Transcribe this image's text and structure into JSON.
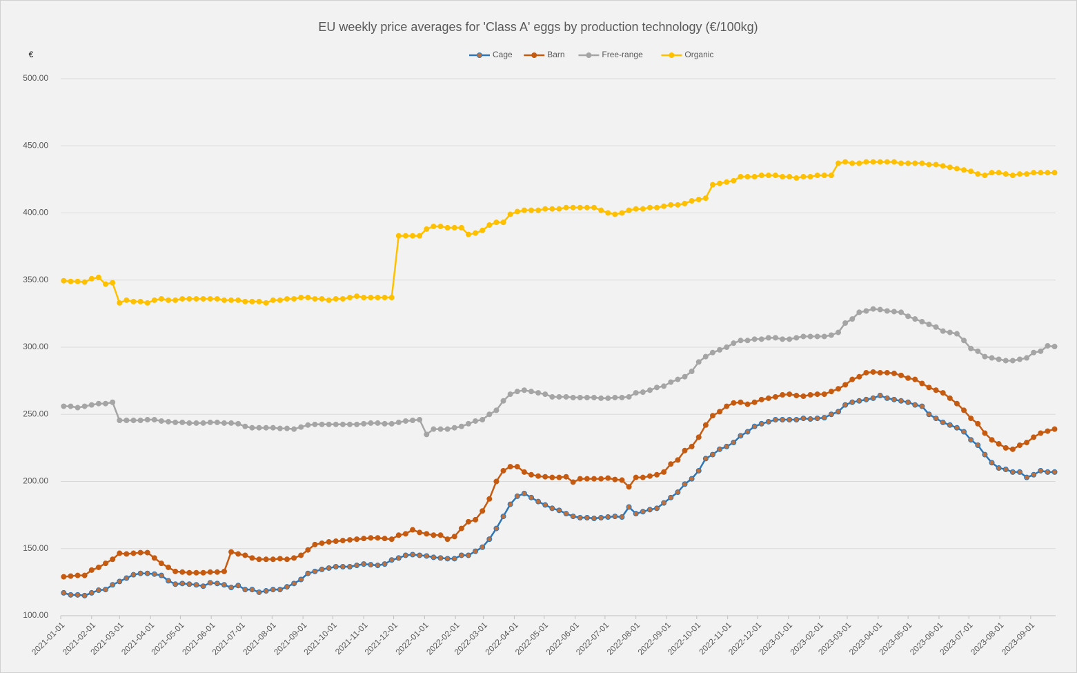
{
  "chart_data": {
    "type": "line",
    "title": "EU weekly price averages for 'Class A' eggs by production technology (€/100kg)",
    "y_label": "€",
    "x": [
      "2021-01-04",
      "2021-01-11",
      "2021-01-18",
      "2021-01-25",
      "2021-02-01",
      "2021-02-08",
      "2021-02-15",
      "2021-02-22",
      "2021-03-01",
      "2021-03-08",
      "2021-03-15",
      "2021-03-22",
      "2021-03-29",
      "2021-04-05",
      "2021-04-12",
      "2021-04-19",
      "2021-04-26",
      "2021-05-03",
      "2021-05-10",
      "2021-05-17",
      "2021-05-24",
      "2021-05-31",
      "2021-06-07",
      "2021-06-14",
      "2021-06-21",
      "2021-06-28",
      "2021-07-05",
      "2021-07-12",
      "2021-07-19",
      "2021-07-26",
      "2021-08-02",
      "2021-08-09",
      "2021-08-16",
      "2021-08-23",
      "2021-08-30",
      "2021-09-06",
      "2021-09-13",
      "2021-09-20",
      "2021-09-27",
      "2021-10-04",
      "2021-10-11",
      "2021-10-18",
      "2021-10-25",
      "2021-11-01",
      "2021-11-08",
      "2021-11-15",
      "2021-11-22",
      "2021-11-29",
      "2021-12-06",
      "2021-12-13",
      "2021-12-20",
      "2021-12-27",
      "2022-01-03",
      "2022-01-10",
      "2022-01-17",
      "2022-01-24",
      "2022-01-31",
      "2022-02-07",
      "2022-02-14",
      "2022-02-21",
      "2022-02-28",
      "2022-03-07",
      "2022-03-14",
      "2022-03-21",
      "2022-03-28",
      "2022-04-04",
      "2022-04-11",
      "2022-04-18",
      "2022-04-25",
      "2022-05-02",
      "2022-05-09",
      "2022-05-16",
      "2022-05-23",
      "2022-05-30",
      "2022-06-06",
      "2022-06-13",
      "2022-06-20",
      "2022-06-27",
      "2022-07-04",
      "2022-07-11",
      "2022-07-18",
      "2022-07-25",
      "2022-08-01",
      "2022-08-08",
      "2022-08-15",
      "2022-08-22",
      "2022-08-29",
      "2022-09-05",
      "2022-09-12",
      "2022-09-19",
      "2022-09-26",
      "2022-10-03",
      "2022-10-10",
      "2022-10-17",
      "2022-10-24",
      "2022-10-31",
      "2022-11-07",
      "2022-11-14",
      "2022-11-21",
      "2022-11-28",
      "2022-12-05",
      "2022-12-12",
      "2022-12-19",
      "2022-12-26",
      "2023-01-02",
      "2023-01-09",
      "2023-01-16",
      "2023-01-23",
      "2023-01-30",
      "2023-02-06",
      "2023-02-13",
      "2023-02-20",
      "2023-02-27",
      "2023-03-06",
      "2023-03-13",
      "2023-03-20",
      "2023-03-27",
      "2023-04-03",
      "2023-04-10",
      "2023-04-17",
      "2023-04-24",
      "2023-05-01",
      "2023-05-08",
      "2023-05-15",
      "2023-05-22",
      "2023-05-29",
      "2023-06-05",
      "2023-06-12",
      "2023-06-19",
      "2023-06-26",
      "2023-07-03",
      "2023-07-10",
      "2023-07-17",
      "2023-07-24",
      "2023-07-31",
      "2023-08-07",
      "2023-08-14",
      "2023-08-21",
      "2023-08-28",
      "2023-09-04",
      "2023-09-11",
      "2023-09-18",
      "2023-09-25"
    ],
    "series": [
      {
        "name": "Cage",
        "color": "#2e75b6",
        "marker_color": "#c0703a",
        "values": [
          117,
          115.5,
          115.5,
          115,
          117,
          119,
          119.5,
          123,
          125.5,
          128,
          130.5,
          131.5,
          131.5,
          131,
          130,
          126,
          123.5,
          124,
          123.5,
          123,
          122,
          124.5,
          124,
          123,
          121,
          122.5,
          119.5,
          119.5,
          117.5,
          118.5,
          119.5,
          119.5,
          121.5,
          124,
          127,
          131.5,
          133,
          134.5,
          135.5,
          136.5,
          136.5,
          136.5,
          137.5,
          138.5,
          138,
          137.5,
          138.5,
          141.5,
          143,
          145,
          145.5,
          145,
          144.5,
          143.5,
          143,
          142.5,
          142.5,
          145,
          145,
          148,
          151,
          157,
          165,
          174,
          183,
          189,
          191,
          188,
          185,
          182.5,
          180,
          178.5,
          176,
          174,
          173,
          173,
          172.5,
          173,
          173.5,
          174,
          173.5,
          181,
          176,
          177.5,
          179,
          180,
          184,
          188,
          192,
          198,
          202,
          208,
          217,
          220,
          224,
          226,
          229,
          234,
          237,
          241,
          243,
          244.5,
          246,
          246,
          246,
          246,
          247,
          246.5,
          247,
          247.5,
          250,
          252,
          257,
          259,
          260,
          261,
          262,
          264,
          262,
          261,
          260,
          259,
          257,
          256,
          250,
          247,
          244,
          242,
          240,
          237,
          231,
          227,
          220,
          214,
          210,
          209,
          207,
          207,
          203,
          205,
          208,
          207,
          207
        ]
      },
      {
        "name": "Barn",
        "color": "#c55a11",
        "values": [
          129,
          129.5,
          130,
          130,
          134,
          136,
          139,
          142,
          146.5,
          146,
          146.5,
          147,
          147,
          143,
          139,
          136,
          133,
          132.5,
          132,
          132,
          132,
          132.5,
          132.5,
          133,
          147.5,
          146,
          145,
          143,
          142,
          142,
          142,
          142.5,
          142,
          143,
          145,
          149,
          153,
          154,
          155,
          155.5,
          156,
          156.5,
          157,
          157.5,
          158,
          158,
          157.5,
          157,
          160,
          161,
          164,
          162,
          161,
          160,
          160,
          157,
          159,
          165,
          170,
          171.5,
          178,
          187,
          200,
          208,
          211,
          211,
          207,
          205,
          204,
          203.5,
          203,
          203,
          203.5,
          199.5,
          202,
          202,
          202,
          202,
          202.5,
          201.5,
          201,
          196,
          203,
          203,
          204,
          205,
          207,
          213,
          216,
          223,
          226,
          233,
          242,
          249,
          252,
          256,
          258.5,
          259,
          257.5,
          259,
          261,
          262,
          263,
          264.5,
          265,
          264,
          263.5,
          264.5,
          265,
          265,
          267,
          269,
          272,
          276,
          278,
          281,
          281.5,
          281,
          281,
          280.5,
          279,
          277,
          276,
          273,
          270,
          268,
          266,
          262,
          258,
          253,
          247,
          243,
          236,
          231,
          228,
          225,
          224,
          227,
          229,
          233,
          236,
          237.5,
          239
        ]
      },
      {
        "name": "Free-range",
        "color": "#a5a5a5",
        "values": [
          256,
          256,
          255,
          256,
          257,
          258,
          258,
          259,
          245.5,
          245.5,
          245.5,
          245.5,
          246,
          246,
          245,
          244.5,
          244,
          244,
          243.5,
          243.5,
          243.5,
          244,
          244,
          243.5,
          243.5,
          243,
          241,
          240,
          240,
          240,
          240,
          239.5,
          239.5,
          239,
          240.5,
          242,
          242.5,
          242.5,
          242.5,
          242.5,
          242.5,
          242.5,
          242.5,
          243,
          243.5,
          243.5,
          243,
          243,
          244,
          245,
          245.5,
          246,
          235,
          239,
          239,
          239,
          240,
          241,
          243,
          245,
          246,
          250,
          253,
          260,
          265,
          267,
          268,
          267,
          266,
          265,
          263,
          263,
          263,
          262.5,
          262.5,
          262.5,
          262.5,
          262,
          262,
          262.5,
          262.5,
          263,
          266,
          266.5,
          268,
          270,
          271,
          274,
          276,
          278,
          282,
          289,
          293,
          296,
          298,
          300,
          303,
          305,
          305,
          306,
          306,
          307,
          307,
          306,
          306,
          307,
          308,
          308,
          308,
          308,
          309,
          311,
          318,
          321,
          326,
          327,
          328.5,
          328,
          327,
          326.5,
          326,
          323,
          321,
          319,
          317,
          315,
          312,
          311,
          310,
          305,
          299,
          297,
          293,
          292,
          291,
          290,
          290,
          291,
          292,
          296,
          297,
          301,
          300.5
        ]
      },
      {
        "name": "Organic",
        "color": "#ffc000",
        "values": [
          349.5,
          349,
          349,
          348.5,
          351,
          352,
          347,
          348,
          333,
          335,
          334,
          334,
          333,
          335,
          336,
          335,
          335,
          336,
          336,
          336,
          336,
          336,
          336,
          335,
          335,
          335,
          334,
          334,
          334,
          333,
          335,
          335,
          336,
          336,
          337,
          337,
          336,
          336,
          335,
          336,
          336,
          337,
          338,
          337,
          337,
          337,
          337,
          337,
          383,
          383,
          383,
          383,
          388,
          390,
          390,
          389,
          389,
          389,
          384,
          385,
          387,
          391,
          393,
          393,
          399,
          401,
          402,
          402,
          402,
          403,
          403,
          403,
          404,
          404,
          404,
          404,
          404,
          402,
          400,
          399,
          400,
          402,
          403,
          403,
          404,
          404,
          405,
          406,
          406,
          407,
          409,
          410,
          411,
          421,
          422,
          423,
          424,
          427,
          427,
          427,
          428,
          428,
          428,
          427,
          427,
          426,
          427,
          427,
          428,
          428,
          428,
          437,
          438,
          437,
          437,
          438,
          438,
          438,
          438,
          438,
          437,
          437,
          437,
          437,
          436,
          436,
          435,
          434,
          433,
          432,
          431,
          429,
          428,
          430,
          430,
          429,
          428,
          429,
          429,
          430,
          430,
          430,
          430
        ]
      }
    ],
    "xlim": [
      "2021-01-01",
      "2023-09-26"
    ],
    "xticks": [
      "2021-01-01",
      "2021-02-01",
      "2021-03-01",
      "2021-04-01",
      "2021-05-01",
      "2021-06-01",
      "2021-07-01",
      "2021-08-01",
      "2021-09-01",
      "2021-10-01",
      "2021-11-01",
      "2021-12-01",
      "2022-01-01",
      "2022-02-01",
      "2022-03-01",
      "2022-04-01",
      "2022-05-01",
      "2022-06-01",
      "2022-07-01",
      "2022-08-01",
      "2022-09-01",
      "2022-10-01",
      "2022-11-01",
      "2022-12-01",
      "2023-01-01",
      "2023-02-01",
      "2023-03-01",
      "2023-04-01",
      "2023-05-01",
      "2023-06-01",
      "2023-07-01",
      "2023-08-01",
      "2023-09-01"
    ],
    "ylim": [
      100,
      500
    ],
    "yticks": [
      {
        "value": 100,
        "label": "100.00"
      },
      {
        "value": 150,
        "label": "150.00"
      },
      {
        "value": 200,
        "label": "200.00"
      },
      {
        "value": 250,
        "label": "250.00"
      },
      {
        "value": 300,
        "label": "300.00"
      },
      {
        "value": 350,
        "label": "350.00"
      },
      {
        "value": 400,
        "label": "400.00"
      },
      {
        "value": 450,
        "label": "450.00"
      },
      {
        "value": 500,
        "label": "500.00"
      }
    ],
    "grid": true,
    "legend": "top"
  }
}
